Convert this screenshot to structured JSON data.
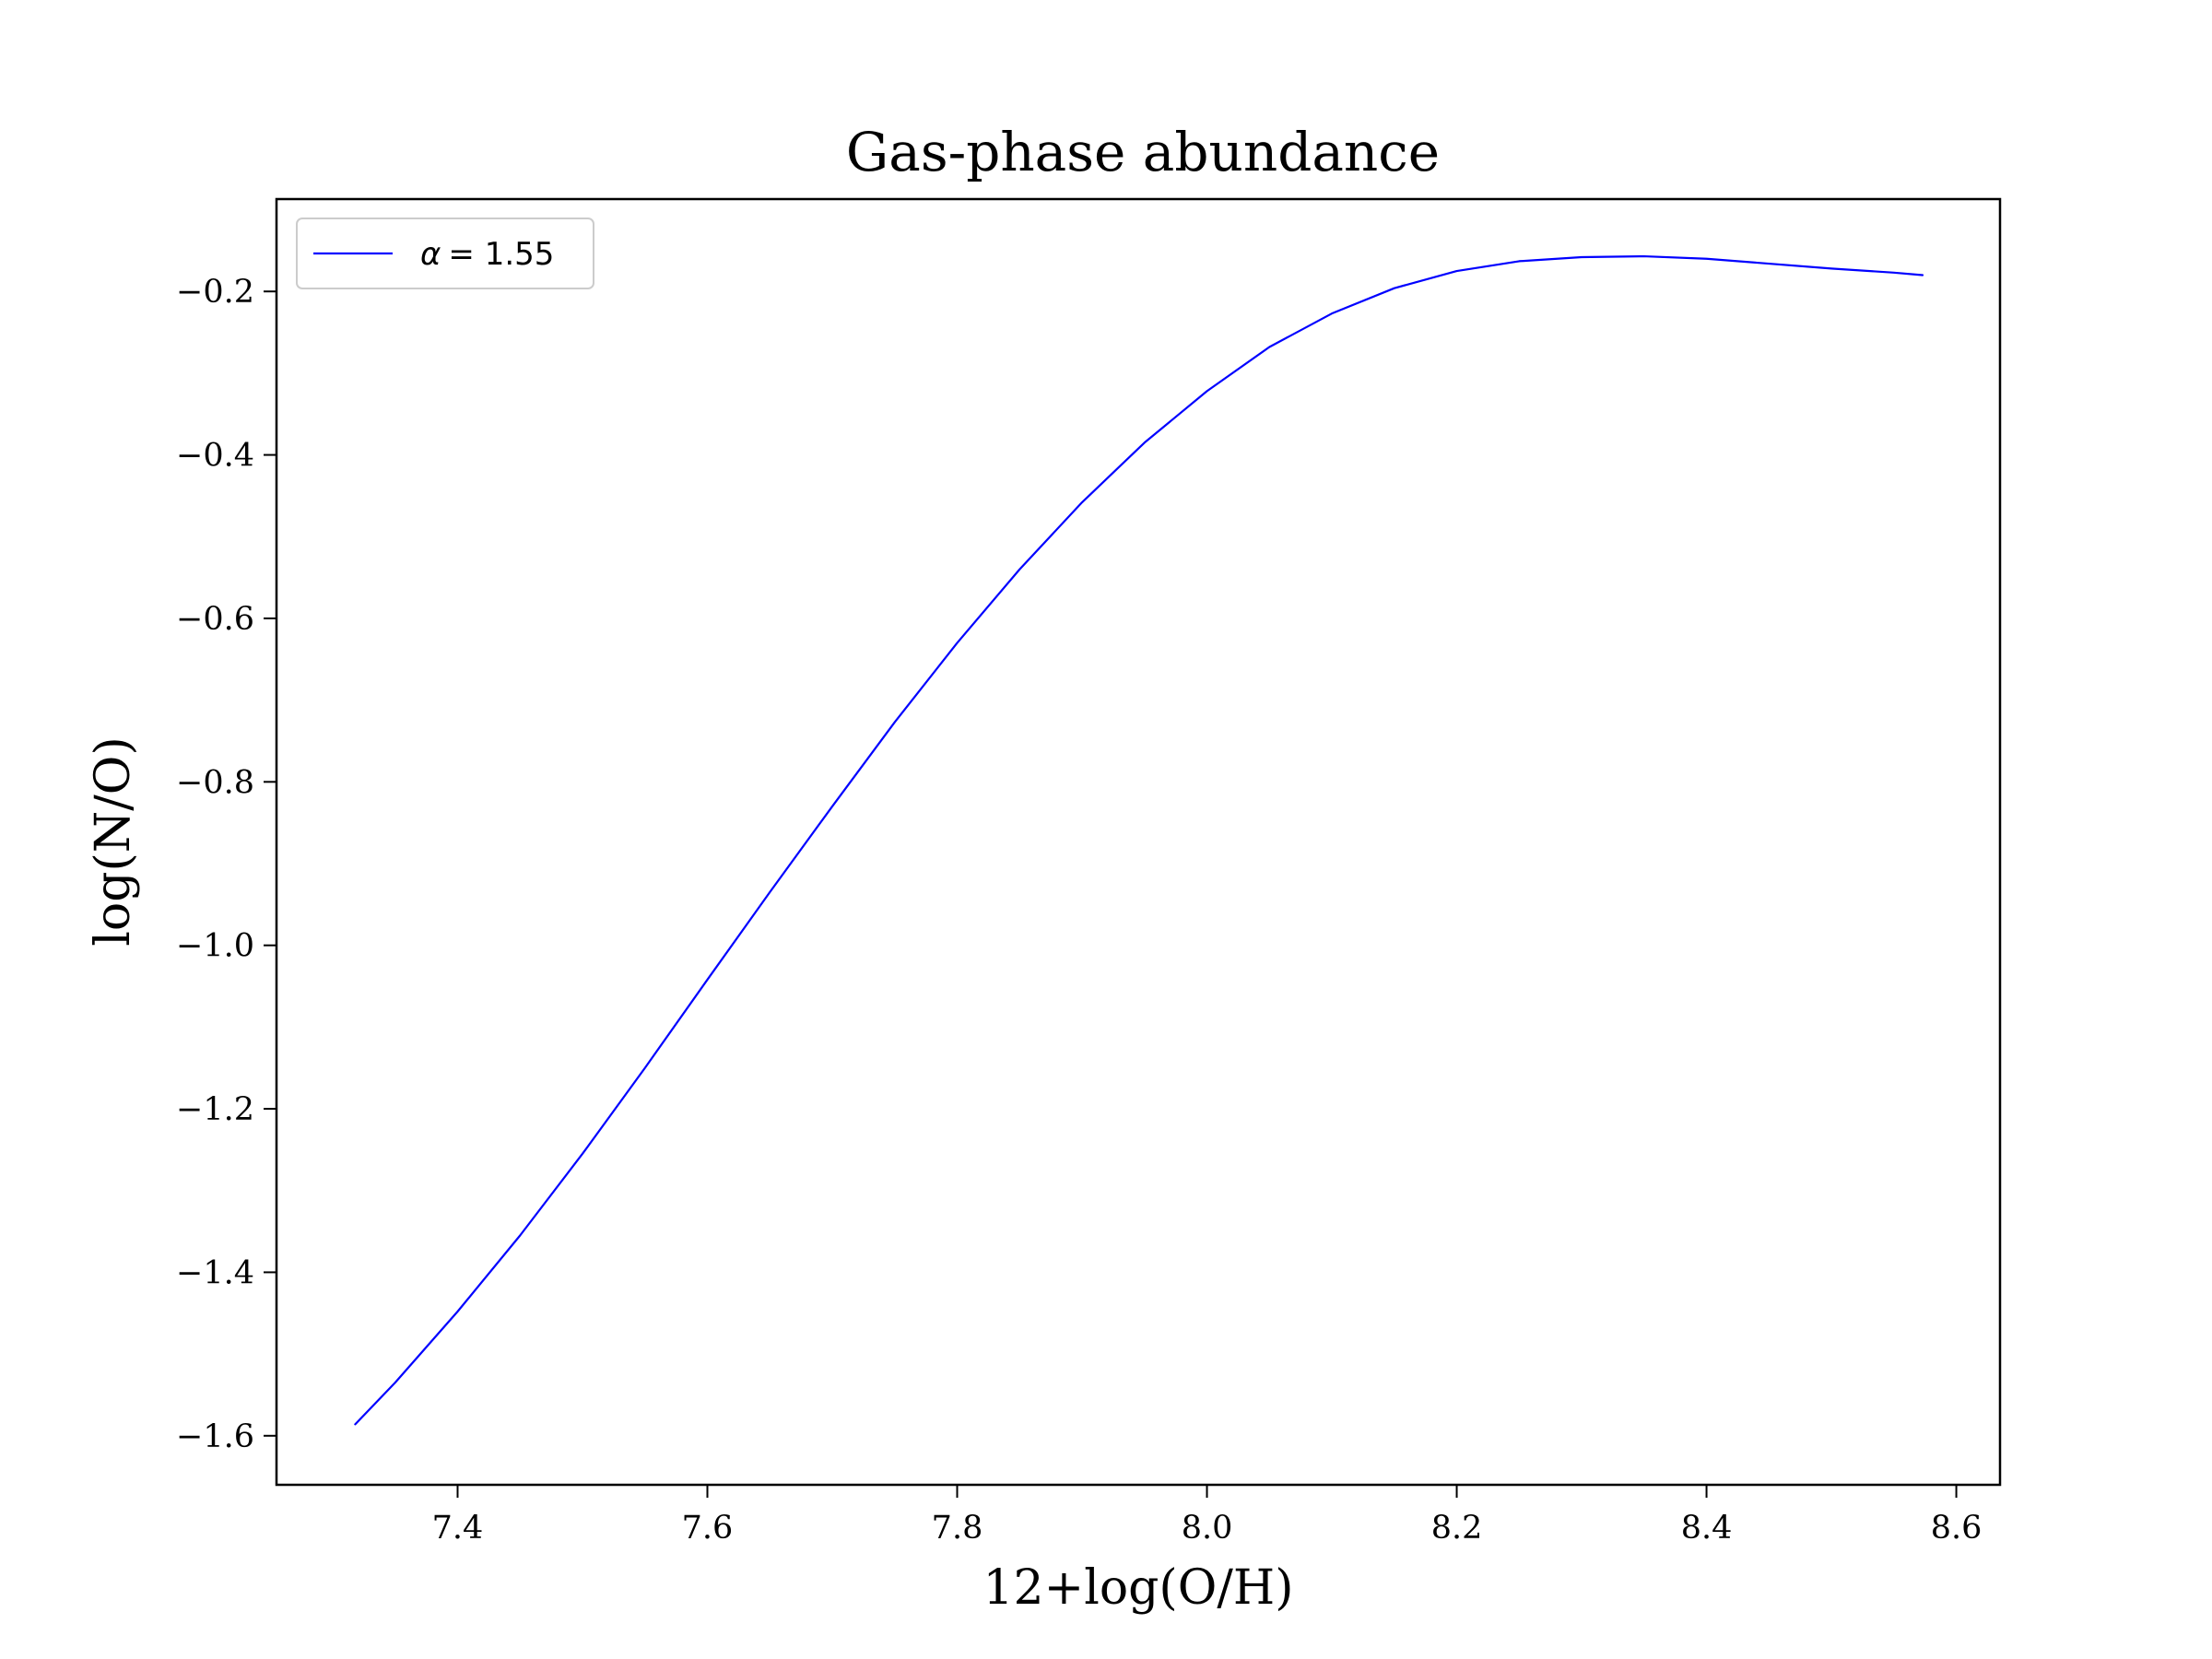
{
  "chart_data": {
    "type": "line",
    "title": "Gas-phase abundance",
    "xlabel": "12+log(O/H)",
    "ylabel": "log(N/O)",
    "xlim": [
      7.255,
      8.635
    ],
    "ylim": [
      -1.66,
      -0.087
    ],
    "xticks": [
      7.4,
      7.6,
      7.8,
      8.0,
      8.2,
      8.4,
      8.6
    ],
    "xtick_labels": [
      "7.4",
      "7.6",
      "7.8",
      "8.0",
      "8.2",
      "8.4",
      "8.6"
    ],
    "yticks": [
      -0.2,
      -0.4,
      -0.6,
      -0.8,
      -1.0,
      -1.2,
      -1.4,
      -1.6
    ],
    "ytick_labels": [
      "−0.2",
      "−0.4",
      "−0.6",
      "−0.8",
      "−1.0",
      "−1.2",
      "−1.4",
      "−1.6"
    ],
    "grid": false,
    "legend_position": "upper left",
    "series": [
      {
        "name": "α = 1.55",
        "legend_symbol": "α",
        "legend_value": "= 1.55",
        "color": "#0000ff",
        "x": [
          7.318,
          7.35,
          7.4,
          7.45,
          7.5,
          7.55,
          7.6,
          7.65,
          7.7,
          7.75,
          7.8,
          7.85,
          7.9,
          7.95,
          8.0,
          8.05,
          8.1,
          8.15,
          8.2,
          8.25,
          8.3,
          8.35,
          8.4,
          8.45,
          8.5,
          8.55,
          8.573
        ],
        "y": [
          -1.586,
          -1.535,
          -1.448,
          -1.355,
          -1.255,
          -1.15,
          -1.042,
          -0.935,
          -0.83,
          -0.727,
          -0.63,
          -0.54,
          -0.458,
          -0.385,
          -0.322,
          -0.268,
          -0.227,
          -0.196,
          -0.175,
          -0.163,
          -0.158,
          -0.157,
          -0.16,
          -0.166,
          -0.172,
          -0.177,
          -0.18
        ]
      }
    ]
  }
}
